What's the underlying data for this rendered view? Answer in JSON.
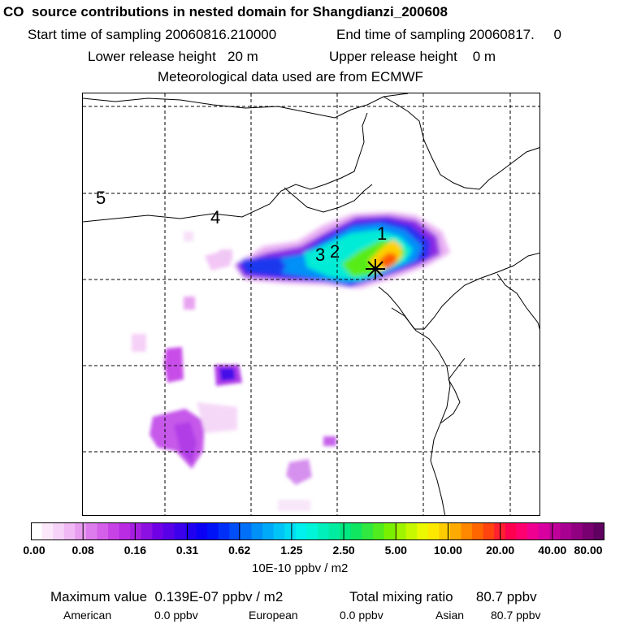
{
  "title": "CO  source contributions in nested domain for Shangdianzi_200608",
  "start_label": "Start time of sampling 20060816.210000",
  "end_label": "End time of sampling 20060817.     0",
  "lower_release": "Lower release height   20 m",
  "upper_release": "Upper release height    0 m",
  "met_data": "Meteorological data used are from ECMWF",
  "map_labels": [
    "5",
    "4",
    "3",
    "2",
    "1"
  ],
  "colorbar": {
    "ticks": [
      "0.00",
      "0.08",
      "0.16",
      "0.31",
      "0.62",
      "1.25",
      "2.50",
      "5.00",
      "10.00",
      "20.00",
      "40.00",
      "80.00"
    ],
    "colors": [
      "#ffffff",
      "#fbe9fb",
      "#f6d2f8",
      "#f0b9f5",
      "#e79cf0",
      "#dd7cec",
      "#d460ea",
      "#c843e6",
      "#b92ce3",
      "#a51ee0",
      "#8c10e2",
      "#7000e6",
      "#5800e8",
      "#3c00ec",
      "#2000f0",
      "#0a00f4",
      "#0012f6",
      "#0030f8",
      "#004ef8",
      "#0070f8",
      "#0090f8",
      "#00aaf8",
      "#00c4f8",
      "#00dcf4",
      "#00f0ee",
      "#00f4d8",
      "#00f0bc",
      "#00eca0",
      "#00e880",
      "#10e660",
      "#30e840",
      "#50ec20",
      "#78f000",
      "#a0f400",
      "#c8f800",
      "#ecf800",
      "#ffe800",
      "#ffcc00",
      "#ffaa00",
      "#ff8800",
      "#ff6600",
      "#ff4410",
      "#ff2030",
      "#ff0050",
      "#ff0070",
      "#f00090",
      "#d800a0",
      "#c0009a",
      "#a80090",
      "#900080",
      "#780070",
      "#600060"
    ],
    "units": "10E-10 ppbv / m2"
  },
  "maximum": "Maximum value  0.139E-07 ppbv / m2",
  "total": "Total mixing ratio      80.7 ppbv",
  "sources": [
    {
      "name": "American",
      "value": "0.0 ppbv"
    },
    {
      "name": "European",
      "value": "0.0 ppbv"
    },
    {
      "name": "Asian",
      "value": "80.7 ppbv"
    }
  ],
  "station_marker": "receptor-star",
  "colors": {
    "line": "#000000",
    "background": "#ffffff"
  }
}
